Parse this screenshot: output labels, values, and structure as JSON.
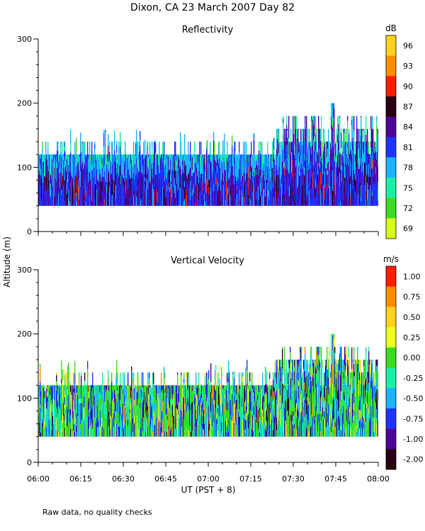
{
  "figure": {
    "title": "Dixon, CA 23 March 2007  Day  82",
    "ylabel": "Altitude (m)",
    "xlabel": "UT  (PST + 8)",
    "footnote": "Raw data, no quality checks"
  },
  "chart_data": [
    {
      "type": "heatmap",
      "title": "Reflectivity",
      "xlabel": "UT  (PST + 8)",
      "ylabel": "Altitude (m)",
      "x_ticks": [
        "06:00",
        "06:15",
        "06:30",
        "06:45",
        "07:00",
        "07:15",
        "07:30",
        "07:45",
        "08:00"
      ],
      "y_ticks": [
        0,
        100,
        200,
        300
      ],
      "xlim": [
        "06:00",
        "08:00"
      ],
      "ylim": [
        0,
        300
      ],
      "colorbar": {
        "unit": "dB",
        "labels": [
          "96",
          "93",
          "90",
          "87",
          "84",
          "81",
          "78",
          "75",
          "72",
          "69"
        ],
        "colors": [
          "#ffd21e",
          "#ff8c00",
          "#ff1e00",
          "#2a0014",
          "#500096",
          "#1e32ff",
          "#19b4ff",
          "#19f0a5",
          "#3cdc1e",
          "#d7ff1e"
        ]
      },
      "data_extent": {
        "altitude_bottom_m": 40,
        "typical_top_m": [
          120,
          140
        ],
        "max_top_m": 200,
        "description": "Echo mostly 40-140 m from 06:00-07:25, rising to 160-180 m after 07:25; strongest returns (81-90 dB) near 40-80 m"
      }
    },
    {
      "type": "heatmap",
      "title": "Vertical Velocity",
      "xlabel": "UT  (PST + 8)",
      "ylabel": "Altitude (m)",
      "x_ticks": [
        "06:00",
        "06:15",
        "06:30",
        "06:45",
        "07:00",
        "07:15",
        "07:30",
        "07:45",
        "08:00"
      ],
      "y_ticks": [
        0,
        100,
        200,
        300
      ],
      "xlim": [
        "06:00",
        "08:00"
      ],
      "ylim": [
        0,
        300
      ],
      "colorbar": {
        "unit": "m/s",
        "labels": [
          "1.00",
          "0.75",
          "0.50",
          "0.25",
          "0.00",
          "-0.25",
          "-0.50",
          "-0.75",
          "-1.00",
          "-2.00"
        ],
        "colors": [
          "#ff1e00",
          "#ff8c00",
          "#ffd21e",
          "#f0ff1e",
          "#3cdc1e",
          "#19f0a5",
          "#19b4ff",
          "#1e32ff",
          "#500096",
          "#2a0014"
        ]
      },
      "data_extent": {
        "altitude_bottom_m": 40,
        "typical_top_m": [
          120,
          140
        ],
        "max_top_m": 200,
        "description": "Velocities mostly between -0.75 and 0.25 m/s; region extends to 160-180 m after 07:25"
      }
    }
  ]
}
